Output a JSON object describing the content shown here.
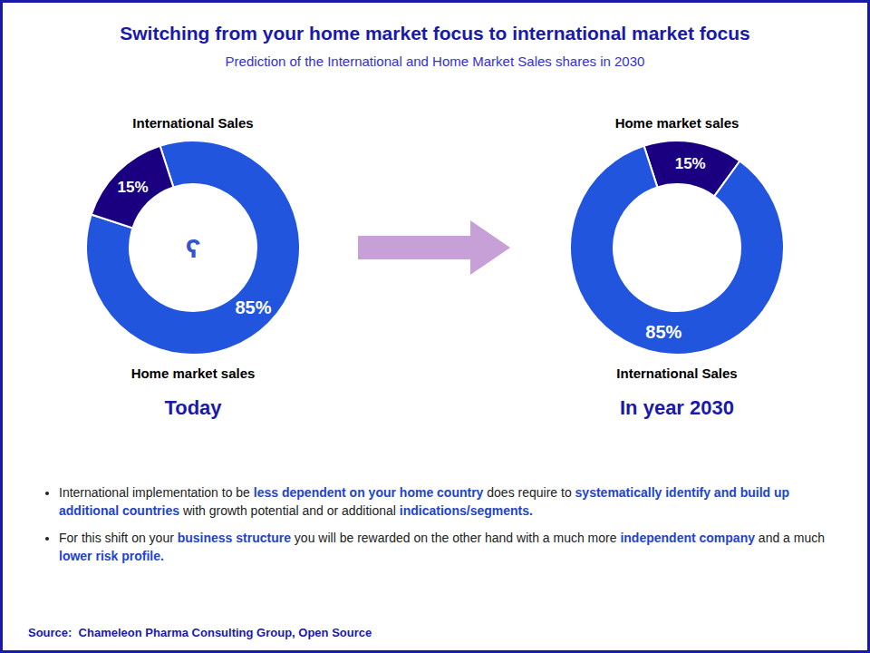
{
  "title": "Switching from your home market focus to international market focus",
  "subtitle": "Prediction of the International and Home Market Sales shares in 2030",
  "notes": [
    {
      "parts": [
        {
          "text": "International implementation to be ",
          "bold": false
        },
        {
          "text": "less dependent on your home country",
          "bold": true
        },
        {
          "text": " does require to ",
          "bold": false
        },
        {
          "text": "systematically identify and build up additional countries",
          "bold": true
        },
        {
          "text": " with growth potential and or additional ",
          "bold": false
        },
        {
          "text": "indications/segments.",
          "bold": true
        }
      ]
    },
    {
      "parts": [
        {
          "text": "For this shift on your ",
          "bold": false
        },
        {
          "text": "business structure",
          "bold": true
        },
        {
          "text": " you will be rewarded on the other hand with a much more ",
          "bold": false
        },
        {
          "text": "independent company",
          "bold": true
        },
        {
          "text": " and a much ",
          "bold": false
        },
        {
          "text": "lower risk profile.",
          "bold": true
        }
      ]
    }
  ],
  "source": "Source:  Chameleon Pharma Consulting Group, Open Source",
  "chart_data": [
    {
      "type": "pie",
      "title": "Today",
      "categories": [
        "Home market sales",
        "International Sales"
      ],
      "values": [
        85,
        15
      ],
      "value_labels": [
        "85%",
        "15%"
      ],
      "colors": [
        "#2255dd",
        "#1a0080"
      ],
      "data_labels": true,
      "annotations": [
        {
          "text": "ʕ",
          "color": "#3355cc"
        }
      ]
    },
    {
      "type": "pie",
      "title": "In year 2030",
      "categories": [
        "Home market sales",
        "International Sales"
      ],
      "values": [
        15,
        85
      ],
      "value_labels": [
        "15%",
        "85%"
      ],
      "colors": [
        "#1a0080",
        "#2255dd"
      ],
      "data_labels": true
    }
  ]
}
